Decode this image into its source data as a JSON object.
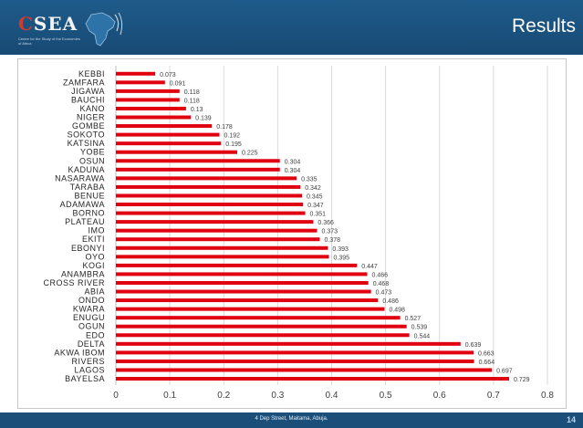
{
  "header": {
    "logo_text": "CSEA",
    "logo_sub": "Centre for the Study of the Economies of Africa",
    "title": "Results"
  },
  "footer": {
    "address": "4 Dep Street, Maitama, Abuja.",
    "page_number": "14"
  },
  "colors": {
    "header_bg": "#1f5b8a",
    "bar": "#e0000f",
    "gridline": "#d9d9d9"
  },
  "chart_data": {
    "type": "bar",
    "orientation": "horizontal",
    "categories": [
      "KEBBI",
      "ZAMFARA",
      "JIGAWA",
      "BAUCHI",
      "KANO",
      "NIGER",
      "GOMBE",
      "SOKOTO",
      "KATSINA",
      "YOBE",
      "OSUN",
      "KADUNA",
      "NASARAWA",
      "TARABA",
      "BENUE",
      "ADAMAWA",
      "BORNO",
      "PLATEAU",
      "IMO",
      "EKITI",
      "EBONYI",
      "OYO",
      "KOGI",
      "ANAMBRA",
      "CROSS RIVER",
      "ABIA",
      "ONDO",
      "KWARA",
      "ENUGU",
      "OGUN",
      "EDO",
      "DELTA",
      "AKWA IBOM",
      "RIVERS",
      "LAGOS",
      "BAYELSA"
    ],
    "values": [
      0.073,
      0.091,
      0.118,
      0.118,
      0.13,
      0.139,
      0.178,
      0.192,
      0.195,
      0.225,
      0.304,
      0.304,
      0.335,
      0.342,
      0.345,
      0.347,
      0.351,
      0.366,
      0.373,
      0.378,
      0.393,
      0.395,
      0.447,
      0.466,
      0.468,
      0.473,
      0.486,
      0.498,
      0.527,
      0.539,
      0.544,
      0.639,
      0.663,
      0.664,
      0.697,
      0.729
    ],
    "value_labels": [
      "0.073",
      "0.091",
      "0.118",
      "0.118",
      "0.13",
      "0.139",
      "0.178",
      "0.192",
      "0.195",
      "0.225",
      "0.304",
      "0.304",
      "0.335",
      "0.342",
      "0.345",
      "0.347",
      "0.351",
      "0.366",
      "0.373",
      "0.378",
      "0.393",
      "0.395",
      "0.447",
      "0.466",
      "0.468",
      "0.473",
      "0.486",
      "0.498",
      "0.527",
      "0.539",
      "0.544",
      "0.639",
      "0.663",
      "0.664",
      "0.697",
      "0.729"
    ],
    "x_ticks": [
      "0",
      "0.1",
      "0.2",
      "0.3",
      "0.4",
      "0.5",
      "0.6",
      "0.7",
      "0.8"
    ],
    "xlim": [
      0,
      0.8
    ],
    "grid": true,
    "legend": "none"
  }
}
